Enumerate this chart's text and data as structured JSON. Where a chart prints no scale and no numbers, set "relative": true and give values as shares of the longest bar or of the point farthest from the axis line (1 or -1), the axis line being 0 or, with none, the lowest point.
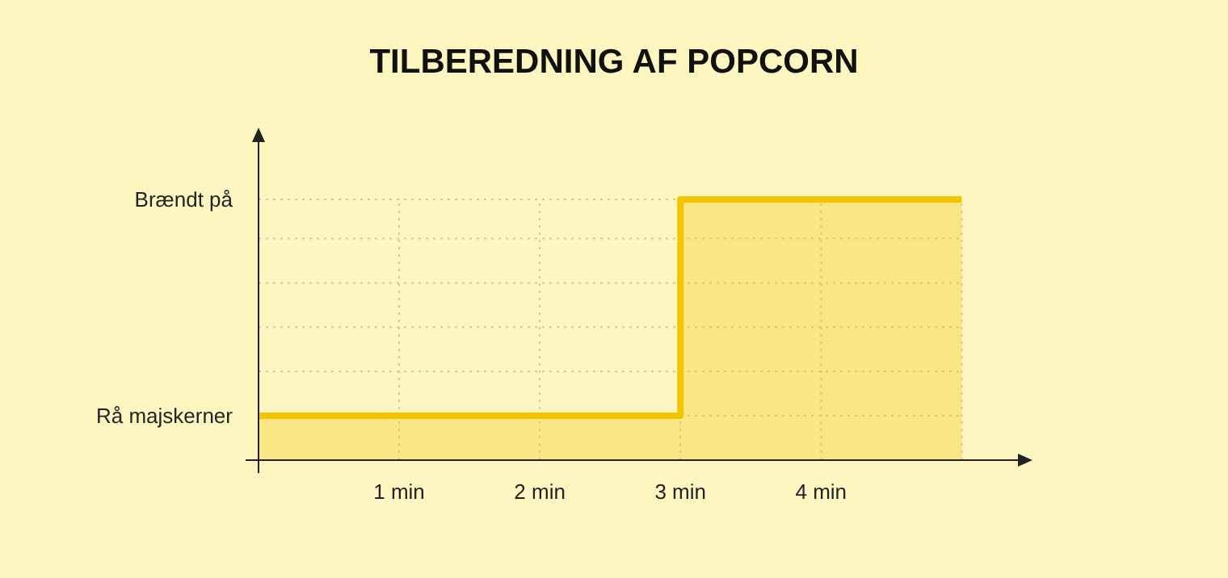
{
  "chart_data": {
    "type": "area",
    "title": "TILBEREDNING AF POPCORN",
    "relative": true,
    "x": [
      0,
      3,
      3,
      5
    ],
    "series": [
      {
        "color": "#f2c500",
        "values": [
          0.17,
          0.17,
          1,
          1
        ]
      }
    ],
    "xlim": [
      0,
      5.4
    ],
    "xticks": [
      {
        "value": 1,
        "label": "1 min"
      },
      {
        "value": 2,
        "label": "2 min"
      },
      {
        "value": 3,
        "label": "3 min"
      },
      {
        "value": 4,
        "label": "4 min"
      },
      {
        "value": 5,
        "label": null
      }
    ],
    "annotations": [
      "Rå majskerner",
      "Brændt på"
    ],
    "grid": true
  }
}
